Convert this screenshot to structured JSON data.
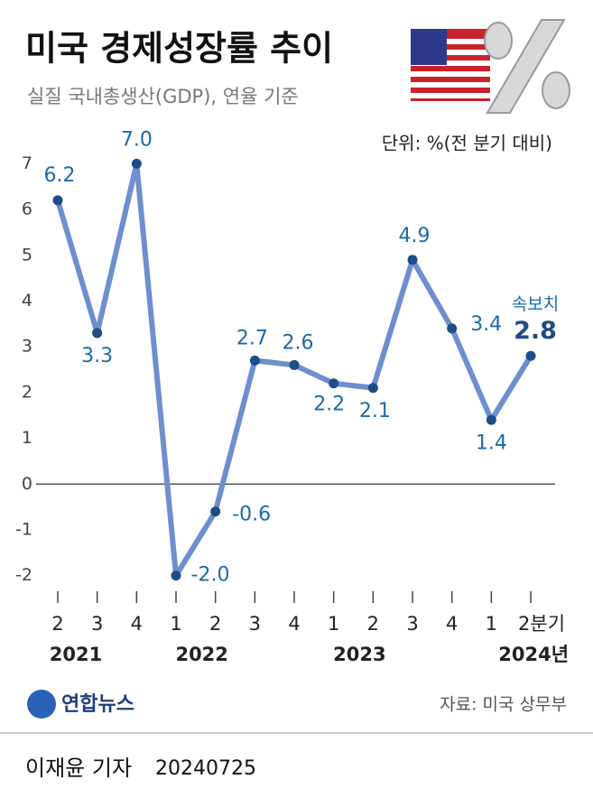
{
  "title": "미국 경제성장률 추이",
  "subtitle": "실질 국내총생산(GDP), 연율 기준",
  "logo": "연합뉴스",
  "source": "자료: 미국 상무부",
  "byline": "이재윤 기자",
  "date": "20240725",
  "chart_data": {
    "type": "line",
    "unit_note": "단위: %(전 분기 대비)",
    "categories": [
      "2",
      "3",
      "4",
      "1",
      "2",
      "3",
      "4",
      "1",
      "2",
      "3",
      "4",
      "1",
      "2분기"
    ],
    "years": [
      "2021",
      null,
      null,
      null,
      "2022",
      null,
      null,
      null,
      "2023",
      null,
      null,
      null,
      "2024년"
    ],
    "values": [
      6.2,
      3.3,
      7.0,
      -2.0,
      -0.6,
      2.7,
      2.6,
      2.2,
      2.1,
      4.9,
      3.4,
      1.4,
      2.8
    ],
    "value_labels": [
      "6.2",
      "3.3",
      "7.0",
      "-2.0",
      "-0.6",
      "2.7",
      "2.6",
      "2.2",
      "2.1",
      "4.9",
      "3.4",
      "1.4",
      "2.8"
    ],
    "annotation": "속보치",
    "color": "#6d8fd0",
    "marker_color": "#1d4c86",
    "label_color": "#1a6aad",
    "ylim": [
      -2.5,
      7.5
    ],
    "yticks": [
      -2,
      -1,
      0,
      1,
      2,
      3,
      4,
      5,
      6,
      7
    ]
  }
}
